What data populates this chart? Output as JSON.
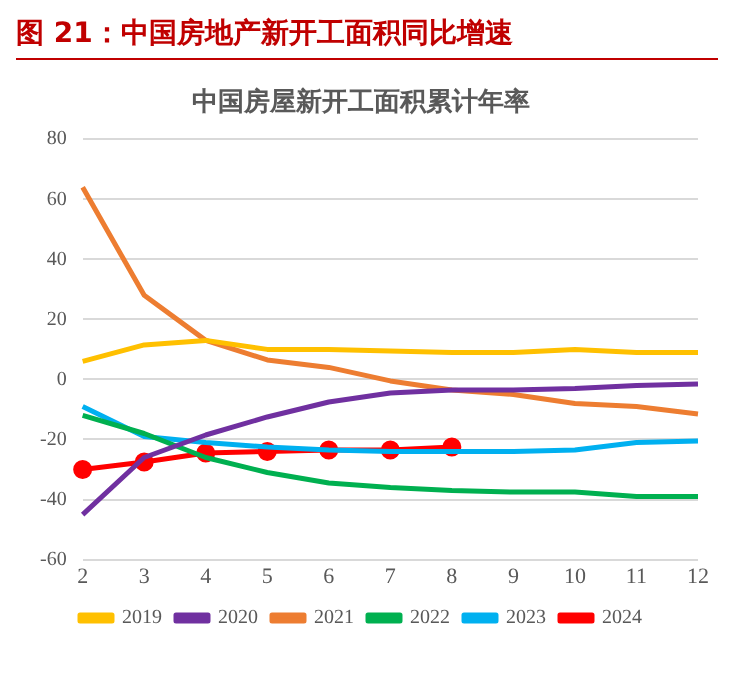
{
  "chart_data": {
    "type": "line",
    "title": "图 21：中国房地产新开工面积同比增速",
    "subtitle": "中国房屋新开工面积累计年率",
    "categories": [
      "2",
      "3",
      "4",
      "5",
      "6",
      "7",
      "8",
      "9",
      "10",
      "11",
      "12"
    ],
    "series": [
      {
        "name": "2019",
        "color": "#ffc000",
        "values": [
          6,
          11.5,
          13,
          10,
          10,
          9.5,
          9,
          9,
          10,
          9,
          9
        ]
      },
      {
        "name": "2020",
        "color": "#7030a0",
        "values": [
          -45,
          -26,
          -18.5,
          -12.5,
          -7.5,
          -4.5,
          -3.5,
          -3.5,
          -3,
          -2,
          -1.5
        ]
      },
      {
        "name": "2021",
        "color": "#ed7d31",
        "values": [
          64,
          28,
          13,
          6.5,
          4,
          -0.5,
          -3.5,
          -5,
          -8,
          -9,
          -11.5
        ]
      },
      {
        "name": "2022",
        "color": "#00b050",
        "values": [
          -12,
          -18,
          -26,
          -31,
          -34.5,
          -36,
          -37,
          -37.5,
          -37.5,
          -39,
          -39
        ]
      },
      {
        "name": "2023",
        "color": "#00b0f0",
        "values": [
          -9,
          -19,
          -21,
          -22.5,
          -23.5,
          -24,
          -24,
          -24,
          -23.5,
          -21,
          -20.5
        ]
      },
      {
        "name": "2024",
        "color": "#ff0000",
        "marker": "circle",
        "values": [
          -30,
          -27.5,
          -24.5,
          -24,
          -23.5,
          -23.5,
          -22.5,
          null,
          null,
          null,
          null
        ]
      }
    ],
    "ylim": [
      -60,
      80
    ],
    "yticks": [
      -60,
      -40,
      -20,
      0,
      20,
      40,
      60,
      80
    ],
    "grid": "y",
    "legend": "bottom",
    "marker": "none"
  }
}
